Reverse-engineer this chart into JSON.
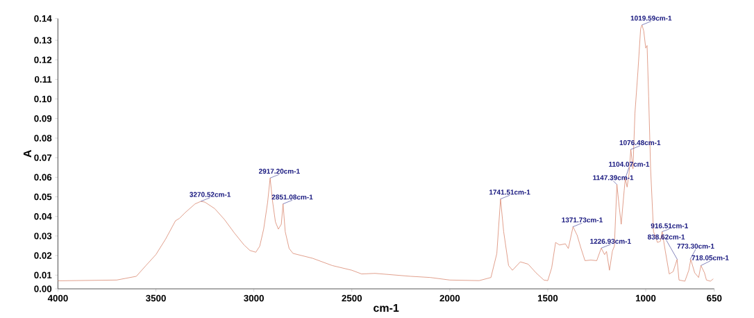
{
  "chart_data": {
    "type": "line",
    "xlabel": "cm-1",
    "ylabel": "A",
    "color": "#d98870",
    "xlim": [
      4000,
      650
    ],
    "ylim": [
      0.003,
      0.1411
    ],
    "xticks": [
      4000,
      3500,
      3000,
      2500,
      2000,
      1500,
      1000,
      650
    ],
    "yticks": [
      {
        "value": 0.003,
        "label": "0.00"
      },
      0.01,
      0.02,
      0.03,
      0.04,
      0.05,
      0.06,
      0.07,
      0.08,
      0.09,
      {
        "value": 0.1,
        "label": "0.10"
      },
      0.11,
      0.12,
      0.13,
      {
        "value": 0.1411,
        "label": "0.14"
      }
    ],
    "x": [
      4000,
      3700,
      3600,
      3550,
      3500,
      3450,
      3400,
      3380,
      3350,
      3300,
      3270,
      3250,
      3200,
      3150,
      3100,
      3050,
      3020,
      2990,
      2970,
      2950,
      2930,
      2917,
      2905,
      2890,
      2875,
      2860,
      2851,
      2840,
      2820,
      2800,
      2700,
      2600,
      2500,
      2450,
      2382,
      2200,
      2100,
      2000,
      1850,
      1790,
      1760,
      1741,
      1725,
      1700,
      1680,
      1640,
      1600,
      1560,
      1520,
      1500,
      1480,
      1460,
      1440,
      1410,
      1395,
      1371,
      1350,
      1330,
      1310,
      1280,
      1250,
      1227,
      1210,
      1200,
      1185,
      1170,
      1160,
      1147,
      1135,
      1125,
      1110,
      1104,
      1095,
      1085,
      1076,
      1065,
      1055,
      1040,
      1026,
      1019,
      1010,
      1000,
      993,
      985,
      975,
      960,
      940,
      925,
      916,
      900,
      880,
      860,
      840,
      830,
      800,
      780,
      770,
      750,
      730,
      718,
      700,
      690,
      670,
      655
    ],
    "values": [
      0.0071,
      0.0075,
      0.0094,
      0.015,
      0.0205,
      0.0285,
      0.0378,
      0.039,
      0.042,
      0.0464,
      0.0477,
      0.0473,
      0.044,
      0.0384,
      0.0316,
      0.0254,
      0.0226,
      0.0217,
      0.0248,
      0.0335,
      0.047,
      0.0596,
      0.048,
      0.0372,
      0.0335,
      0.036,
      0.0464,
      0.0322,
      0.0236,
      0.0211,
      0.0186,
      0.0149,
      0.0125,
      0.0106,
      0.0109,
      0.0094,
      0.0088,
      0.0075,
      0.0072,
      0.0088,
      0.021,
      0.0489,
      0.0322,
      0.0149,
      0.0125,
      0.0168,
      0.0156,
      0.0112,
      0.0075,
      0.0072,
      0.0137,
      0.0267,
      0.0254,
      0.026,
      0.0236,
      0.0347,
      0.0304,
      0.0236,
      0.0174,
      0.0177,
      0.0174,
      0.0238,
      0.0205,
      0.0221,
      0.0125,
      0.0223,
      0.0248,
      0.0563,
      0.0446,
      0.036,
      0.0532,
      0.0594,
      0.055,
      0.0619,
      0.0742,
      0.0643,
      0.0927,
      0.1137,
      0.1359,
      0.1378,
      0.1347,
      0.126,
      0.1273,
      0.1014,
      0.0643,
      0.0322,
      0.0267,
      0.0273,
      0.0322,
      0.0223,
      0.0106,
      0.0118,
      0.018,
      0.0075,
      0.0069,
      0.0125,
      0.018,
      0.0112,
      0.0088,
      0.0149,
      0.0112,
      0.0075,
      0.0069,
      0.0081
    ],
    "annotations": [
      {
        "text": "3270.52cm-1",
        "x": 3270.52,
        "y": 0.0477
      },
      {
        "text": "2917.20cm-1",
        "x": 2917.2,
        "y": 0.0596
      },
      {
        "text": "2851.08cm-1",
        "x": 2851.08,
        "y": 0.0464
      },
      {
        "text": "1741.51cm-1",
        "x": 1741.51,
        "y": 0.0489
      },
      {
        "text": "1371.73cm-1",
        "x": 1371.73,
        "y": 0.0347
      },
      {
        "text": "1226.93cm-1",
        "x": 1226.93,
        "y": 0.0238
      },
      {
        "text": "1147.39cm-1",
        "x": 1147.39,
        "y": 0.0563
      },
      {
        "text": "1104.07cm-1",
        "x": 1104.07,
        "y": 0.0594
      },
      {
        "text": "1076.48cm-1",
        "x": 1076.48,
        "y": 0.0742
      },
      {
        "text": "1019.59cm-1",
        "x": 1019.59,
        "y": 0.1378
      },
      {
        "text": "916.51cm-1",
        "x": 916.51,
        "y": 0.0322
      },
      {
        "text": "838.62cm-1",
        "x": 838.62,
        "y": 0.018
      },
      {
        "text": "773.30cm-1",
        "x": 773.3,
        "y": 0.018
      },
      {
        "text": "718.05cm-1",
        "x": 718.05,
        "y": 0.0149
      }
    ]
  }
}
